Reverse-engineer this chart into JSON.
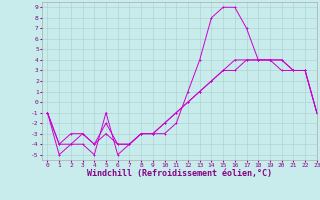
{
  "bg_color": "#c8ecec",
  "grid_color": "#aacccc",
  "line_color": "#cc00cc",
  "x_hours": [
    0,
    1,
    2,
    3,
    4,
    5,
    6,
    7,
    8,
    9,
    10,
    11,
    12,
    13,
    14,
    15,
    16,
    17,
    18,
    19,
    20,
    21,
    22,
    23
  ],
  "line1_y": [
    -1,
    -5,
    -4,
    -4,
    -5,
    -1,
    -5,
    -4,
    -3,
    -3,
    -3,
    -2,
    1,
    4,
    8,
    9,
    9,
    7,
    4,
    4,
    3,
    3,
    3,
    -1
  ],
  "line2_y": [
    -1,
    -4,
    -4,
    -3,
    -4,
    -3,
    -4,
    -4,
    -3,
    -3,
    -2,
    -1,
    0,
    1,
    2,
    3,
    3,
    4,
    4,
    4,
    4,
    3,
    3,
    -1
  ],
  "line3_y": [
    -1,
    -4,
    -3,
    -3,
    -4,
    -2,
    -4,
    -4,
    -3,
    -3,
    -2,
    -1,
    0,
    1,
    2,
    3,
    4,
    4,
    4,
    4,
    4,
    3,
    3,
    -1
  ],
  "xlim": [
    -0.5,
    23
  ],
  "ylim": [
    -5.5,
    9.5
  ],
  "xticks": [
    0,
    1,
    2,
    3,
    4,
    5,
    6,
    7,
    8,
    9,
    10,
    11,
    12,
    13,
    14,
    15,
    16,
    17,
    18,
    19,
    20,
    21,
    22,
    23
  ],
  "yticks": [
    -5,
    -4,
    -3,
    -2,
    -1,
    0,
    1,
    2,
    3,
    4,
    5,
    6,
    7,
    8,
    9
  ],
  "xlabel": "Windchill (Refroidissement éolien,°C)",
  "tick_fontsize": 4.5,
  "xlabel_fontsize": 6.0,
  "tick_color": "#880088",
  "label_color": "#880088"
}
